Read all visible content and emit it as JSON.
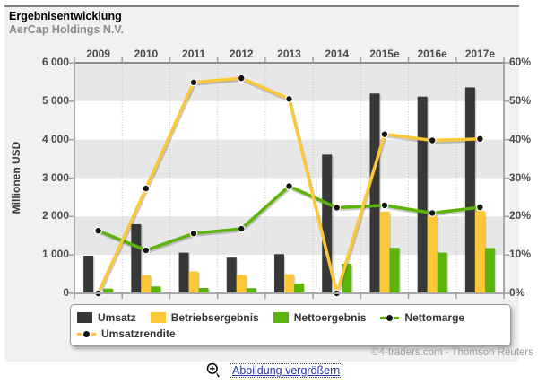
{
  "header": {
    "title": "Ergebnisentwicklung",
    "subtitle": "AerCap Holdings N.V."
  },
  "chart_data": {
    "type": "bar",
    "categories": [
      "2009",
      "2010",
      "2011",
      "2012",
      "2013",
      "2014",
      "2015e",
      "2016e",
      "2017e"
    ],
    "left_axis": {
      "label": "Millionen USD",
      "min": 0,
      "max": 6000,
      "ticks": [
        "6 000",
        "5 000",
        "4 000",
        "3 000",
        "2 000",
        "1 000",
        "0"
      ]
    },
    "right_axis": {
      "min": 0,
      "max": 60,
      "ticks": [
        "60%",
        "50%",
        "40%",
        "30%",
        "20%",
        "10%",
        "0%"
      ]
    },
    "bar_series": [
      {
        "name": "Umsatz",
        "color": "#373737",
        "values": [
          980,
          1800,
          1060,
          930,
          1020,
          3610,
          5200,
          5120,
          5360
        ]
      },
      {
        "name": "Betriebsergebnis",
        "color": "#fcc838",
        "values": [
          0,
          470,
          570,
          480,
          500,
          0,
          2130,
          2015,
          2150
        ]
      },
      {
        "name": "Nettoergebnis",
        "color": "#5cb30a",
        "values": [
          125,
          180,
          140,
          135,
          260,
          770,
          1185,
          1060,
          1180
        ]
      }
    ],
    "line_series": [
      {
        "name": "Nettomarge",
        "color": "#5cb30a",
        "axis": "right",
        "values": [
          16.3,
          11.2,
          15.6,
          16.8,
          27.9,
          22.3,
          22.9,
          20.9,
          22.4
        ]
      },
      {
        "name": "Umsatzrendite",
        "color": "#fcc838",
        "axis": "right",
        "values": [
          0,
          27.3,
          54.9,
          56.0,
          50.6,
          0,
          41.4,
          39.8,
          40.2
        ]
      }
    ],
    "plot_style": {
      "band_gray": "#e7e7e7",
      "band_white": "#ffffff",
      "grid": "vertical-dotted",
      "legend_position": "bottom"
    }
  },
  "footer": {
    "credit": "©4-traders.com - Thomson Reuters",
    "zoom_link_label": "Abbildung vergrößern"
  }
}
